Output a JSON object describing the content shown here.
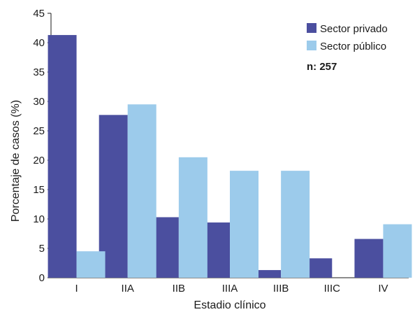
{
  "chart_data": {
    "type": "bar",
    "xlabel": "Estadio clínico",
    "ylabel": "Porcentaje de casos  (%)",
    "ylim": [
      0,
      45
    ],
    "yticks": [
      0,
      5,
      10,
      15,
      20,
      25,
      30,
      35,
      40,
      45
    ],
    "categories": [
      "I",
      "IIA",
      "IIB",
      "IIIA",
      "IIIB",
      "IIIC",
      "IV"
    ],
    "series": [
      {
        "name": "Sector privado",
        "color": "#4b4f9f",
        "values": [
          41.3,
          27.7,
          10.3,
          9.4,
          1.3,
          3.3,
          6.6
        ]
      },
      {
        "name": "Sector público",
        "color": "#9ccbeb",
        "values": [
          4.5,
          29.5,
          20.5,
          18.2,
          18.2,
          null,
          9.1
        ]
      }
    ],
    "annotation": "n: 257",
    "grid": false,
    "legend_position": "top-right"
  }
}
